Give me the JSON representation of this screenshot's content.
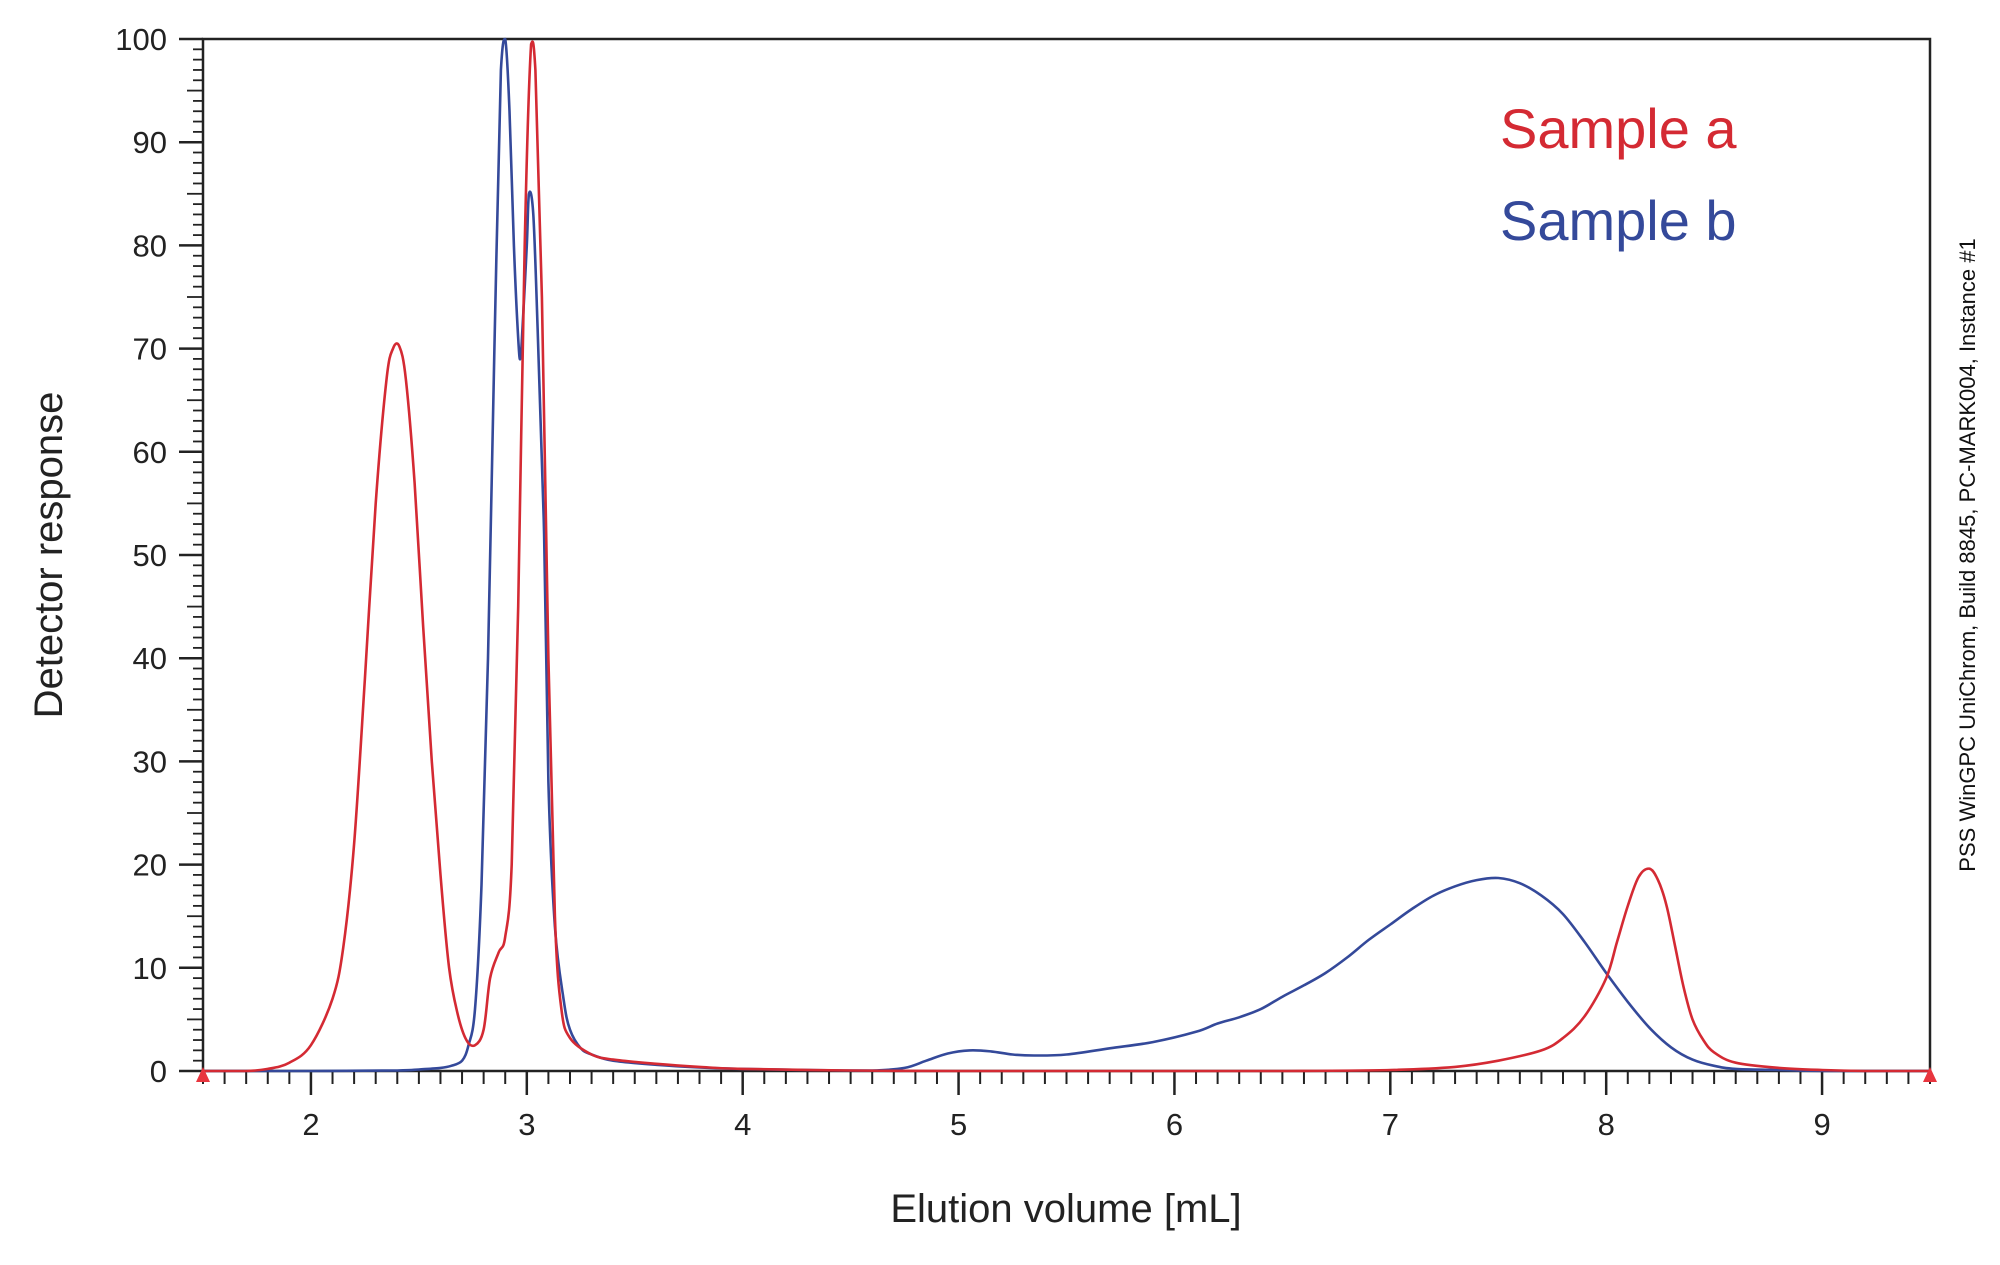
{
  "chart_data": {
    "type": "line",
    "title": "",
    "xlabel": "Elution volume [mL]",
    "ylabel": "Detector response",
    "xlim": [
      1.5,
      9.5
    ],
    "ylim": [
      0,
      100
    ],
    "x_ticks": [
      2,
      3,
      4,
      5,
      6,
      7,
      8,
      9
    ],
    "y_ticks": [
      0,
      10,
      20,
      30,
      40,
      50,
      60,
      70,
      80,
      90,
      100
    ],
    "grid": false,
    "legend_position": "top-right",
    "watermark": "PSS WinGPC UniChrom, Build 8845, PC-MARK004, Instance #1",
    "series": [
      {
        "name": "Sample a",
        "color": "#d42a33",
        "points": [
          [
            1.5,
            0
          ],
          [
            1.7,
            0
          ],
          [
            1.8,
            0.2
          ],
          [
            1.9,
            0.8
          ],
          [
            2.0,
            2.5
          ],
          [
            2.1,
            7
          ],
          [
            2.15,
            12
          ],
          [
            2.2,
            22
          ],
          [
            2.25,
            38
          ],
          [
            2.3,
            55
          ],
          [
            2.35,
            67
          ],
          [
            2.38,
            70
          ],
          [
            2.41,
            70.2
          ],
          [
            2.44,
            67
          ],
          [
            2.48,
            57
          ],
          [
            2.52,
            43
          ],
          [
            2.56,
            30
          ],
          [
            2.6,
            19
          ],
          [
            2.64,
            10
          ],
          [
            2.68,
            5.5
          ],
          [
            2.72,
            3
          ],
          [
            2.76,
            2.5
          ],
          [
            2.8,
            4
          ],
          [
            2.83,
            9
          ],
          [
            2.87,
            11.5
          ],
          [
            2.9,
            13
          ],
          [
            2.93,
            20
          ],
          [
            2.96,
            45
          ],
          [
            2.99,
            80
          ],
          [
            3.02,
            99.5
          ],
          [
            3.04,
            97
          ],
          [
            3.07,
            75
          ],
          [
            3.1,
            40
          ],
          [
            3.13,
            15
          ],
          [
            3.16,
            6
          ],
          [
            3.2,
            3.2
          ],
          [
            3.3,
            1.6
          ],
          [
            3.4,
            1.1
          ],
          [
            3.6,
            0.7
          ],
          [
            3.8,
            0.4
          ],
          [
            4.0,
            0.2
          ],
          [
            4.5,
            0.05
          ],
          [
            5.0,
            0
          ],
          [
            6.0,
            0
          ],
          [
            6.5,
            0
          ],
          [
            7.0,
            0.1
          ],
          [
            7.3,
            0.4
          ],
          [
            7.5,
            1
          ],
          [
            7.7,
            2
          ],
          [
            7.8,
            3.2
          ],
          [
            7.9,
            5.3
          ],
          [
            8.0,
            9
          ],
          [
            8.05,
            12.5
          ],
          [
            8.1,
            16
          ],
          [
            8.15,
            18.8
          ],
          [
            8.2,
            19.6
          ],
          [
            8.24,
            18.5
          ],
          [
            8.28,
            16
          ],
          [
            8.32,
            12
          ],
          [
            8.36,
            8
          ],
          [
            8.4,
            5
          ],
          [
            8.45,
            3
          ],
          [
            8.5,
            1.8
          ],
          [
            8.6,
            0.8
          ],
          [
            8.8,
            0.3
          ],
          [
            9.0,
            0.1
          ],
          [
            9.2,
            0
          ],
          [
            9.5,
            0
          ]
        ]
      },
      {
        "name": "Sample b",
        "color": "#34499a",
        "points": [
          [
            1.5,
            0
          ],
          [
            2.0,
            0
          ],
          [
            2.4,
            0.05
          ],
          [
            2.5,
            0.15
          ],
          [
            2.6,
            0.3
          ],
          [
            2.65,
            0.5
          ],
          [
            2.7,
            1
          ],
          [
            2.73,
            2.5
          ],
          [
            2.76,
            6
          ],
          [
            2.79,
            18
          ],
          [
            2.82,
            40
          ],
          [
            2.85,
            70
          ],
          [
            2.88,
            97
          ],
          [
            2.9,
            100
          ],
          [
            2.92,
            93
          ],
          [
            2.94,
            80
          ],
          [
            2.96,
            71
          ],
          [
            2.97,
            69
          ],
          [
            2.98,
            72
          ],
          [
            3.0,
            80
          ],
          [
            3.01,
            85
          ],
          [
            3.03,
            83
          ],
          [
            3.05,
            72
          ],
          [
            3.08,
            52
          ],
          [
            3.1,
            28
          ],
          [
            3.13,
            14
          ],
          [
            3.17,
            7
          ],
          [
            3.2,
            4
          ],
          [
            3.25,
            2.2
          ],
          [
            3.3,
            1.6
          ],
          [
            3.4,
            1
          ],
          [
            3.6,
            0.6
          ],
          [
            3.8,
            0.35
          ],
          [
            4.0,
            0.2
          ],
          [
            4.3,
            0.1
          ],
          [
            4.6,
            0.05
          ],
          [
            4.75,
            0.3
          ],
          [
            4.85,
            1
          ],
          [
            4.95,
            1.7
          ],
          [
            5.05,
            2
          ],
          [
            5.15,
            1.9
          ],
          [
            5.25,
            1.6
          ],
          [
            5.35,
            1.5
          ],
          [
            5.5,
            1.6
          ],
          [
            5.7,
            2.2
          ],
          [
            5.9,
            2.8
          ],
          [
            6.1,
            3.8
          ],
          [
            6.2,
            4.6
          ],
          [
            6.3,
            5.2
          ],
          [
            6.4,
            6
          ],
          [
            6.5,
            7.2
          ],
          [
            6.6,
            8.3
          ],
          [
            6.7,
            9.5
          ],
          [
            6.8,
            11
          ],
          [
            6.9,
            12.7
          ],
          [
            7.0,
            14.2
          ],
          [
            7.1,
            15.7
          ],
          [
            7.2,
            17
          ],
          [
            7.3,
            17.9
          ],
          [
            7.4,
            18.5
          ],
          [
            7.5,
            18.7
          ],
          [
            7.6,
            18.2
          ],
          [
            7.7,
            17
          ],
          [
            7.8,
            15.2
          ],
          [
            7.9,
            12.5
          ],
          [
            8.0,
            9.5
          ],
          [
            8.1,
            6.7
          ],
          [
            8.2,
            4.2
          ],
          [
            8.3,
            2.3
          ],
          [
            8.4,
            1.1
          ],
          [
            8.5,
            0.5
          ],
          [
            8.6,
            0.2
          ],
          [
            8.8,
            0.1
          ],
          [
            9.0,
            0
          ],
          [
            9.5,
            0
          ]
        ]
      }
    ]
  }
}
